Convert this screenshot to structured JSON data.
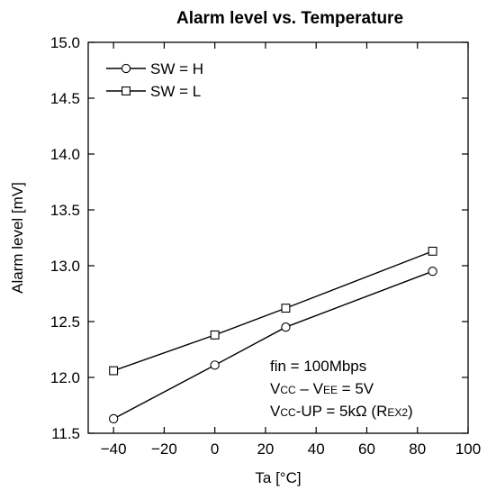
{
  "chart_data": {
    "type": "line",
    "title": "Alarm level vs. Temperature",
    "xlabel": "Ta [°C]",
    "ylabel": "Alarm level [mV]",
    "xlim": [
      -50,
      100
    ],
    "ylim": [
      11.5,
      15.0
    ],
    "xticks": [
      -40,
      -20,
      0,
      20,
      40,
      60,
      80,
      100
    ],
    "yticks": [
      11.5,
      12.0,
      12.5,
      13.0,
      13.5,
      14.0,
      14.5,
      15.0
    ],
    "x_tick_labels": [
      "−40",
      "−20",
      "0",
      "20",
      "40",
      "60",
      "80",
      "100"
    ],
    "y_tick_labels": [
      "11.5",
      "12.0",
      "12.5",
      "13.0",
      "13.5",
      "14.0",
      "14.5",
      "15.0"
    ],
    "grid": false,
    "legend_position": "top-left",
    "series": [
      {
        "name": "SW = H",
        "marker": "circle",
        "x": [
          -40,
          0,
          28,
          86
        ],
        "y": [
          11.63,
          12.11,
          12.45,
          12.95
        ]
      },
      {
        "name": "SW = L",
        "marker": "square",
        "x": [
          -40,
          0,
          28,
          86
        ],
        "y": [
          12.06,
          12.38,
          12.62,
          13.13
        ]
      }
    ],
    "annotations": [
      {
        "parts": [
          {
            "t": "fin = 100Mbps"
          }
        ]
      },
      {
        "parts": [
          {
            "t": "V"
          },
          {
            "t": "CC",
            "sub": true
          },
          {
            "t": " – V"
          },
          {
            "t": "EE",
            "sub": true
          },
          {
            "t": " = 5V"
          }
        ]
      },
      {
        "parts": [
          {
            "t": "V"
          },
          {
            "t": "CC",
            "sub": true
          },
          {
            "t": "-UP = 5kΩ (R"
          },
          {
            "t": "EX2",
            "sub": true
          },
          {
            "t": ")"
          }
        ]
      }
    ]
  }
}
